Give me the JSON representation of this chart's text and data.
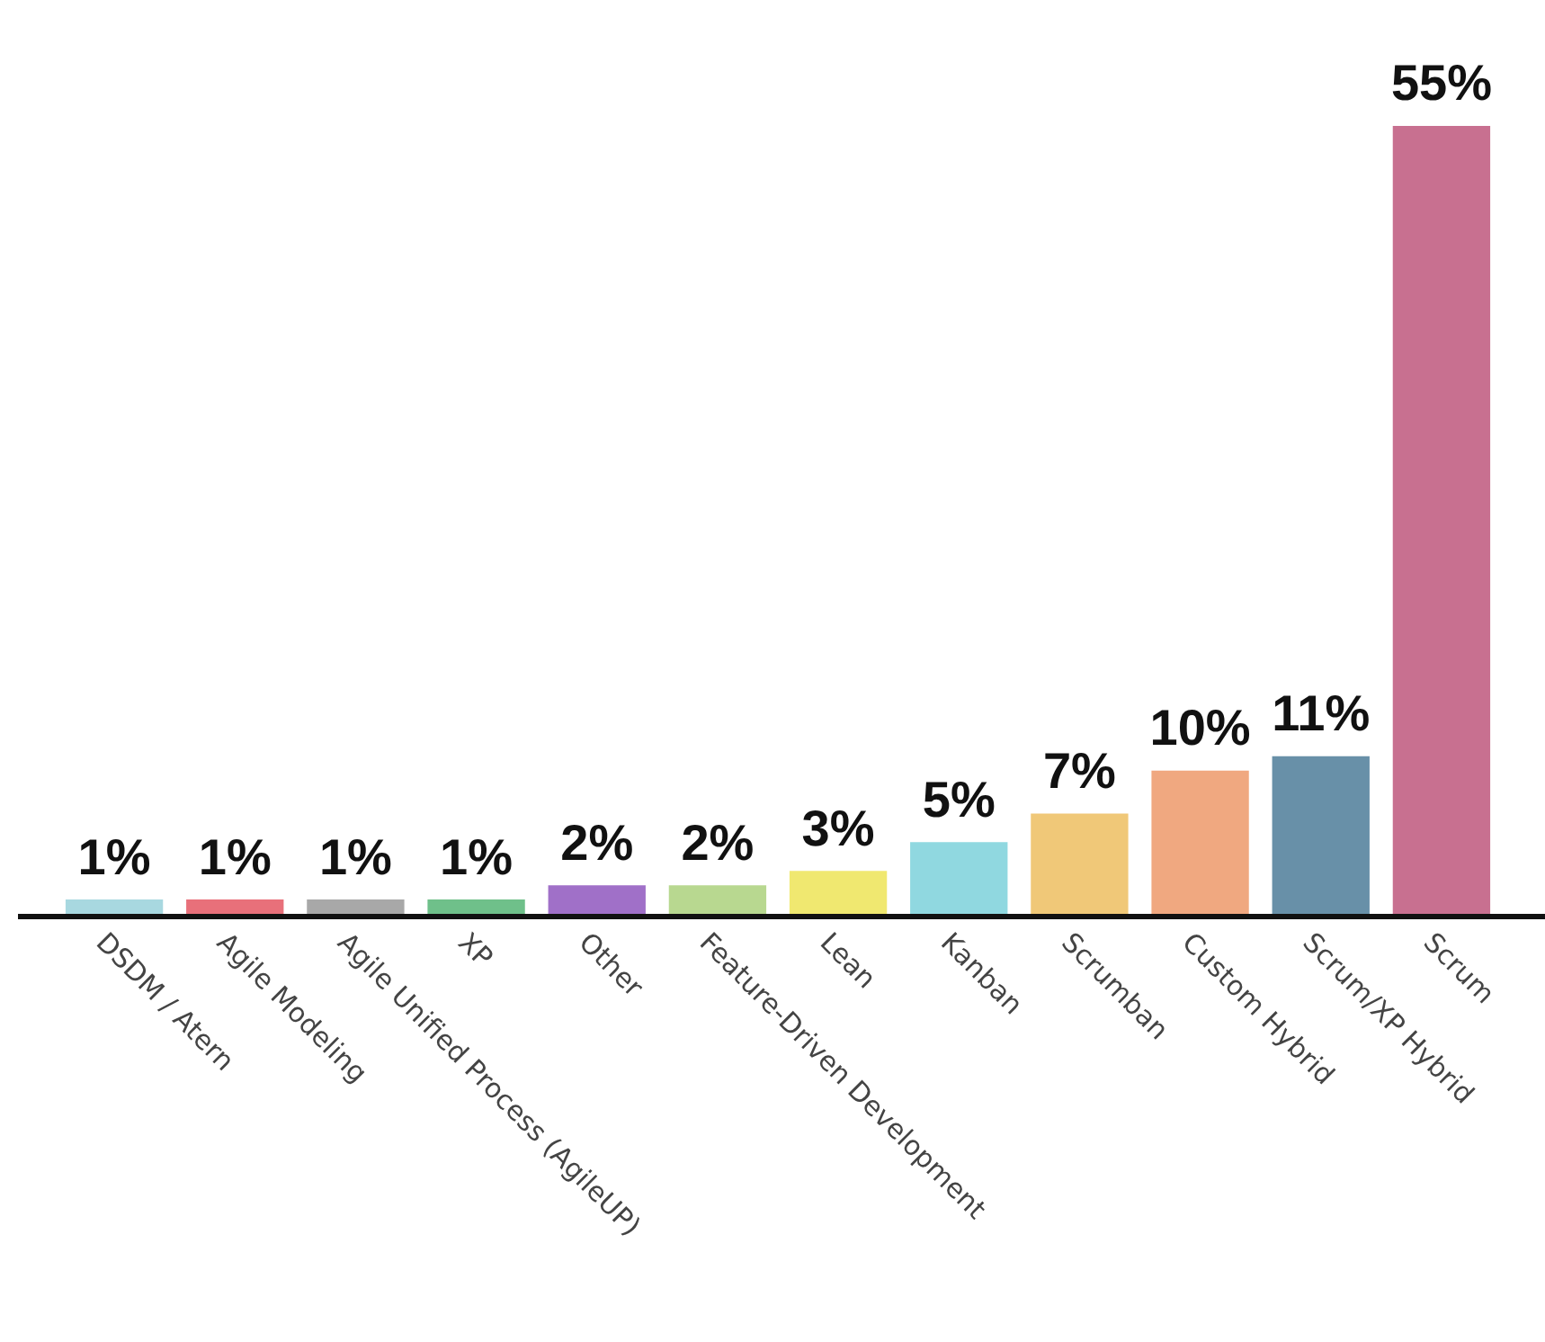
{
  "chart_data": {
    "type": "bar",
    "categories": [
      "DSDM / Atern",
      "Agile Modeling",
      "Agile Unified Process (AgileUP)",
      "XP",
      "Other",
      "Feature-Driven Development",
      "Lean",
      "Kanban",
      "Scrumban",
      "Custom Hybrid",
      "Scrum/XP Hybrid",
      "Scrum"
    ],
    "values": [
      1,
      1,
      1,
      1,
      2,
      2,
      3,
      5,
      7,
      10,
      11,
      55
    ],
    "colors": [
      "#a8d8e0",
      "#e8707a",
      "#a8a8a8",
      "#6fc08a",
      "#a070c8",
      "#b8d890",
      "#f0e870",
      "#90d8e0",
      "#f0c878",
      "#f0a880",
      "#6890a8",
      "#c87090"
    ],
    "value_labels": [
      "1%",
      "1%",
      "1%",
      "1%",
      "2%",
      "2%",
      "3%",
      "5%",
      "7%",
      "10%",
      "11%",
      "55%"
    ],
    "grid": false,
    "legend": false
  }
}
